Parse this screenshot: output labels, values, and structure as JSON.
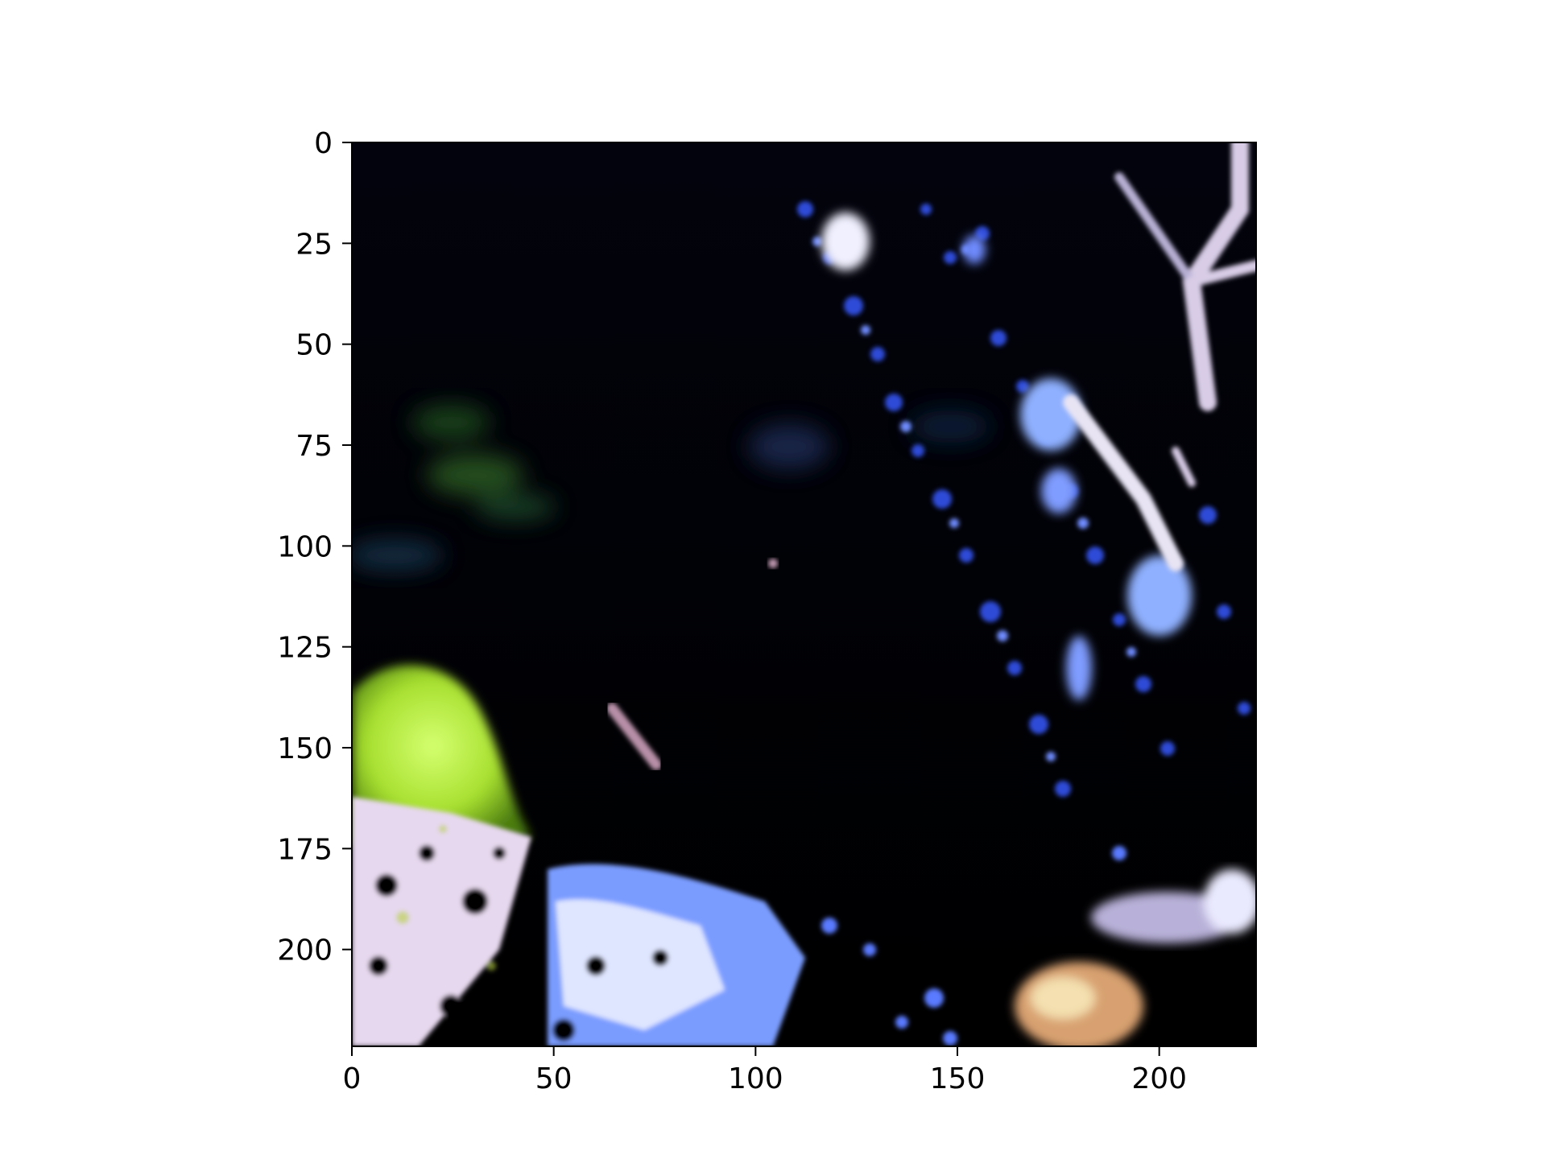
{
  "figure": {
    "type": "image",
    "description_colors": {
      "background": "#000000",
      "deep_navy": "#050514",
      "blue_lichen": "#2f4bd8",
      "light_blue": "#8fb0ff",
      "pale_highlight": "#e8e4f4",
      "leaf_green": "#b8f040",
      "moss_green": "#1f4a1a",
      "rusty_tan": "#d8a070"
    },
    "axes_frame": "#000000"
  },
  "chart_data": {
    "type": "image",
    "title": "",
    "xlabel": "",
    "ylabel": "",
    "xlim": [
      0,
      224
    ],
    "ylim": [
      224,
      0
    ],
    "xticks": [
      {
        "value": 0,
        "label": "0"
      },
      {
        "value": 50,
        "label": "50"
      },
      {
        "value": 100,
        "label": "100"
      },
      {
        "value": 150,
        "label": "150"
      },
      {
        "value": 200,
        "label": "200"
      }
    ],
    "yticks": [
      {
        "value": 0,
        "label": "0"
      },
      {
        "value": 25,
        "label": "25"
      },
      {
        "value": 50,
        "label": "50"
      },
      {
        "value": 75,
        "label": "75"
      },
      {
        "value": 100,
        "label": "100"
      },
      {
        "value": 125,
        "label": "125"
      },
      {
        "value": 150,
        "label": "150"
      },
      {
        "value": 175,
        "label": "175"
      },
      {
        "value": 200,
        "label": "200"
      }
    ],
    "grid": false,
    "legend": "none"
  }
}
